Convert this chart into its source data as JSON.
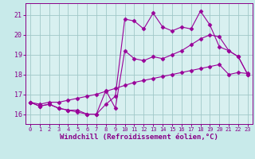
{
  "background_color": "#c8eaea",
  "plot_bg_color": "#d8f0f0",
  "line_color": "#990099",
  "grid_color": "#a0c8c8",
  "xlabel": "Windchill (Refroidissement éolien,°C)",
  "xlabel_color": "#880088",
  "tick_color": "#880088",
  "xlim": [
    -0.5,
    23.5
  ],
  "ylim": [
    15.5,
    21.6
  ],
  "yticks": [
    16,
    17,
    18,
    19,
    20,
    21
  ],
  "xticks": [
    0,
    1,
    2,
    3,
    4,
    5,
    6,
    7,
    8,
    9,
    10,
    11,
    12,
    13,
    14,
    15,
    16,
    17,
    18,
    19,
    20,
    21,
    22,
    23
  ],
  "line1_x": [
    0,
    1,
    2,
    3,
    4,
    5,
    6,
    7,
    8,
    9,
    10,
    11,
    12,
    13,
    14,
    15,
    16,
    17,
    18,
    19,
    20,
    21,
    22,
    23
  ],
  "line1_y": [
    16.6,
    16.4,
    16.5,
    16.3,
    16.2,
    16.1,
    16.0,
    16.0,
    16.5,
    16.9,
    20.8,
    20.7,
    20.3,
    21.1,
    20.4,
    20.2,
    20.4,
    20.3,
    21.2,
    20.5,
    19.4,
    19.2,
    18.9,
    18.0
  ],
  "line2_x": [
    0,
    1,
    2,
    3,
    4,
    5,
    6,
    7,
    8,
    9,
    10,
    11,
    12,
    13,
    14,
    15,
    16,
    17,
    18,
    19,
    20,
    21,
    22,
    23
  ],
  "line2_y": [
    16.6,
    16.4,
    16.5,
    16.3,
    16.2,
    16.2,
    16.0,
    16.0,
    17.2,
    16.3,
    19.2,
    18.8,
    18.7,
    18.9,
    18.8,
    19.0,
    19.2,
    19.5,
    19.8,
    20.0,
    19.9,
    19.2,
    18.9,
    18.0
  ],
  "line3_x": [
    0,
    1,
    2,
    3,
    4,
    5,
    6,
    7,
    8,
    9,
    10,
    11,
    12,
    13,
    14,
    15,
    16,
    17,
    18,
    19,
    20,
    21,
    22,
    23
  ],
  "line3_y": [
    16.6,
    16.5,
    16.6,
    16.6,
    16.7,
    16.8,
    16.9,
    17.0,
    17.15,
    17.3,
    17.45,
    17.6,
    17.7,
    17.8,
    17.9,
    18.0,
    18.1,
    18.2,
    18.3,
    18.4,
    18.5,
    18.0,
    18.1,
    18.05
  ],
  "marker": "D",
  "markersize": 2.5,
  "linewidth": 0.8
}
